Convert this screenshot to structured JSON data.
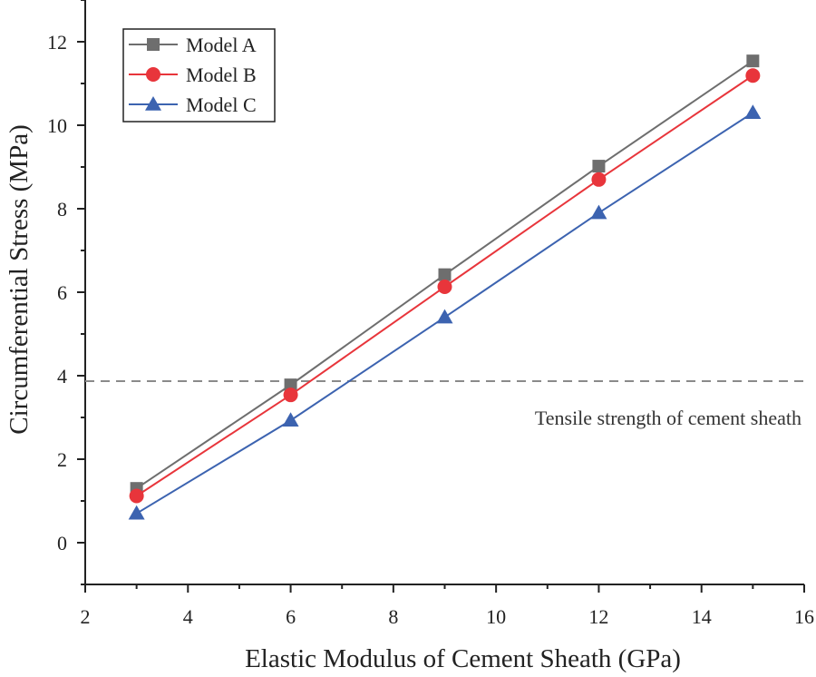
{
  "chart_data": {
    "type": "line",
    "xlabel": "Elastic Modulus of Cement Sheath (GPa)",
    "ylabel": "Circumferential Stress (MPa)",
    "xlim": [
      2,
      16
    ],
    "ylim": [
      -1,
      13
    ],
    "xticks": [
      2,
      4,
      6,
      8,
      10,
      12,
      14,
      16
    ],
    "yticks": [
      0,
      2,
      4,
      6,
      8,
      10,
      12
    ],
    "legend_position": "top-left",
    "series": [
      {
        "name": "Model A",
        "marker": "square",
        "color": "#6e6e6e",
        "x": [
          3,
          6,
          9,
          12,
          15
        ],
        "y": [
          1.3,
          3.78,
          6.42,
          9.02,
          11.54
        ]
      },
      {
        "name": "Model B",
        "marker": "circle",
        "color": "#e8353b",
        "x": [
          3,
          6,
          9,
          12,
          15
        ],
        "y": [
          1.12,
          3.54,
          6.13,
          8.7,
          11.19
        ]
      },
      {
        "name": "Model C",
        "marker": "triangle",
        "color": "#3c63b0",
        "x": [
          3,
          6,
          9,
          12,
          15
        ],
        "y": [
          0.7,
          2.93,
          5.4,
          7.9,
          10.3
        ]
      }
    ],
    "reference_line": {
      "y": 3.87,
      "label": "Tensile strength of cement sheath",
      "color": "#8a8a8a",
      "style": "dashed"
    }
  }
}
